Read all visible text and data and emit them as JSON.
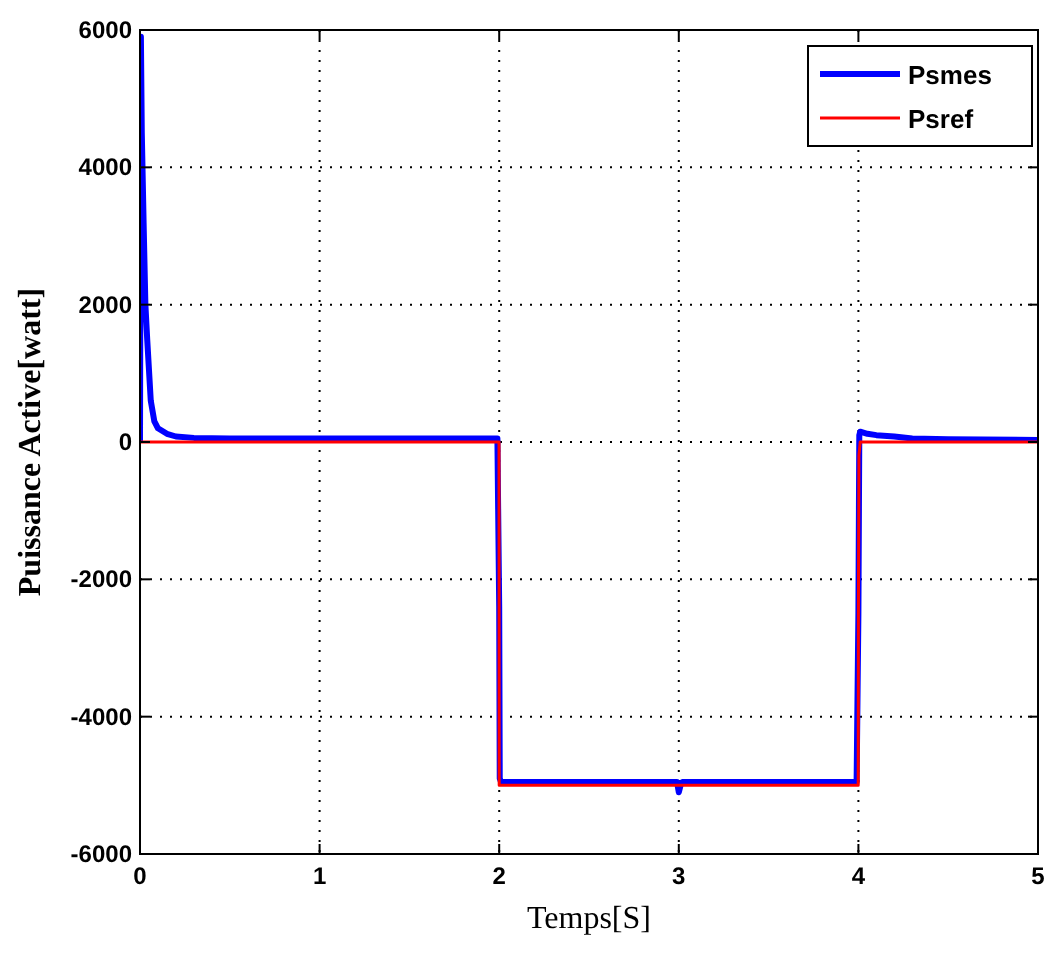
{
  "chart_data": {
    "type": "line",
    "xlabel": "Temps[S]",
    "ylabel": "Puissance Active[watt]",
    "xlim": [
      0,
      5
    ],
    "xticks": [
      0,
      1,
      2,
      3,
      4,
      5
    ],
    "ylim": [
      -6000,
      6000
    ],
    "yticks": [
      -6000,
      -4000,
      -2000,
      0,
      2000,
      4000,
      6000
    ],
    "grid": true,
    "legend": "top right",
    "line_style": "solid",
    "series": [
      {
        "name": "Psmes",
        "color": "#0000ff",
        "x": [
          0,
          0.005,
          0.01,
          0.02,
          0.03,
          0.04,
          0.06,
          0.08,
          0.1,
          0.15,
          0.2,
          0.3,
          0.5,
          1,
          1.5,
          1.99,
          2,
          2.003,
          2.01,
          2.5,
          2.99,
          3,
          3.01,
          3.02,
          3.5,
          3.99,
          4,
          4.005,
          4.01,
          4.05,
          4.1,
          4.2,
          4.3,
          4.5,
          5
        ],
        "values": [
          0,
          5900,
          4500,
          3200,
          2000,
          1500,
          600,
          300,
          200,
          120,
          80,
          60,
          50,
          50,
          50,
          50,
          -2400,
          -4900,
          -4950,
          -4950,
          -4950,
          -5100,
          -5000,
          -4950,
          -4950,
          -4950,
          -2500,
          100,
          150,
          120,
          100,
          80,
          50,
          40,
          30
        ]
      },
      {
        "name": "Psref",
        "color": "#ff0000",
        "x": [
          0,
          1.999,
          2,
          3.999,
          4,
          4.003,
          4.01,
          5
        ],
        "values": [
          0,
          0,
          -5000,
          -5000,
          -2500,
          -200,
          0,
          0
        ]
      }
    ]
  }
}
